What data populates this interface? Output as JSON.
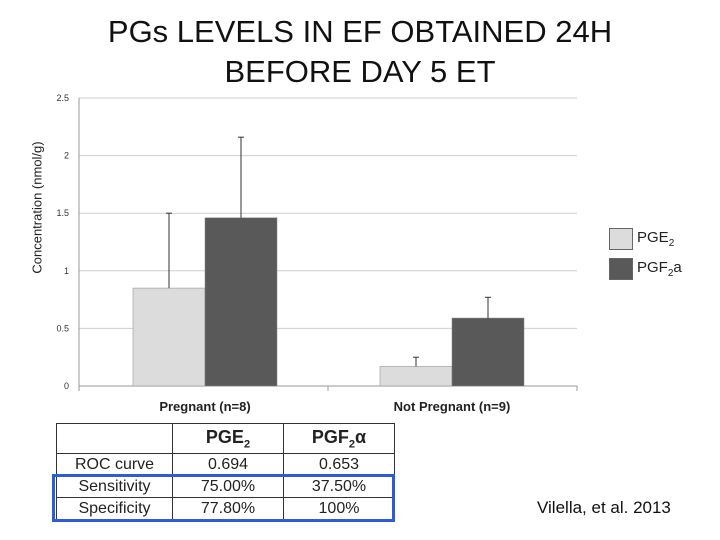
{
  "title": {
    "line1": "PGs LEVELS IN EF OBTAINED 24H",
    "line2": "BEFORE DAY 5 ET"
  },
  "chart_data": {
    "type": "bar",
    "title": "PGs LEVELS IN EF OBTAINED 24H BEFORE DAY 5 ET",
    "ylabel": "Concentration (nmol/g)",
    "xlabel": "",
    "ylim": [
      0,
      2.5
    ],
    "yticks": [
      0,
      0.5,
      1,
      1.5,
      2,
      2.5
    ],
    "ytick_labels": [
      "0",
      "0.5",
      "1",
      "1.5",
      "2",
      "2.5"
    ],
    "grid": true,
    "legend_position": "right",
    "categories": [
      "Pregnant (n=8)",
      "Not Pregnant (n=9)"
    ],
    "series": [
      {
        "name": "PGE2",
        "label_main": "PGE",
        "label_sub": "2",
        "label_tail": "",
        "color": "#dcdcdc",
        "values": [
          0.85,
          0.17
        ],
        "error": [
          0.65,
          0.08
        ]
      },
      {
        "name": "PGF2a",
        "label_main": "PGF",
        "label_sub": "2",
        "label_tail": "a",
        "color": "#595959",
        "values": [
          1.46,
          0.59
        ],
        "error": [
          0.7,
          0.18
        ]
      }
    ]
  },
  "table": {
    "headers": [
      {
        "main": "",
        "sub": "",
        "tail": ""
      },
      {
        "main": "PGE",
        "sub": "2",
        "tail": ""
      },
      {
        "main": "PGF",
        "sub": "2",
        "tail": "α"
      }
    ],
    "rows": [
      {
        "label": "ROC curve",
        "pge2": "0.694",
        "pgf2a": "0.653"
      },
      {
        "label": "Sensitivity",
        "pge2": "75.00%",
        "pgf2a": "37.50%"
      },
      {
        "label": "Specificity",
        "pge2": "77.80%",
        "pgf2a": "100%"
      }
    ],
    "highlight_color": "#2c5cd6"
  },
  "citation": "Vilella, et al. 2013"
}
